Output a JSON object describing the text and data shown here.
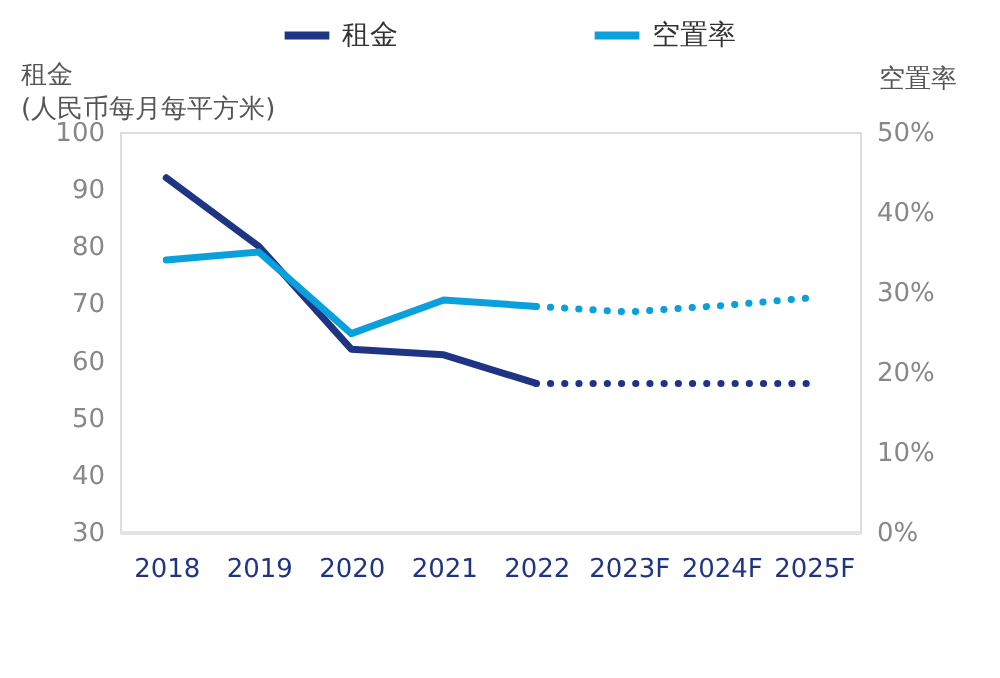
{
  "chart_data": {
    "type": "line",
    "ylabel": "租金\n(人民币每月每平方米)",
    "y2label": "空置率",
    "categories": [
      "2018",
      "2019",
      "2020",
      "2021",
      "2022",
      "2023F",
      "2024F",
      "2025F"
    ],
    "series": [
      {
        "name": "租金",
        "color": "#1f3584",
        "line_style": "solid",
        "values": [
          92,
          80,
          62,
          61,
          56,
          null,
          null,
          null
        ]
      },
      {
        "color": "#1f3584",
        "line_style": "dotted",
        "values": [
          null,
          null,
          null,
          null,
          56,
          56,
          56,
          56
        ]
      },
      {
        "name": "空置率",
        "color": "#0aa0dc",
        "axis": "y2",
        "line_style": "solid",
        "values": [
          34,
          35,
          24.8,
          29,
          28.2,
          null,
          null,
          null
        ]
      },
      {
        "color": "#0aa0dc",
        "axis": "y2",
        "line_style": "dotted",
        "values": [
          null,
          null,
          null,
          null,
          28.2,
          27.5,
          28.3,
          29.3
        ]
      }
    ],
    "ylim": [
      30,
      100
    ],
    "yticks": [
      30,
      40,
      50,
      60,
      70,
      80,
      90,
      100
    ],
    "y2lim": [
      0,
      50
    ],
    "y2ticks": [
      {
        "value": 0,
        "label": "0%"
      },
      {
        "value": 10,
        "label": "10%"
      },
      {
        "value": 20,
        "label": "20%"
      },
      {
        "value": 30,
        "label": "30%"
      },
      {
        "value": 40,
        "label": "40%"
      },
      {
        "value": 50,
        "label": "50%"
      }
    ],
    "grid": false,
    "legend": "top",
    "marker": "none"
  }
}
